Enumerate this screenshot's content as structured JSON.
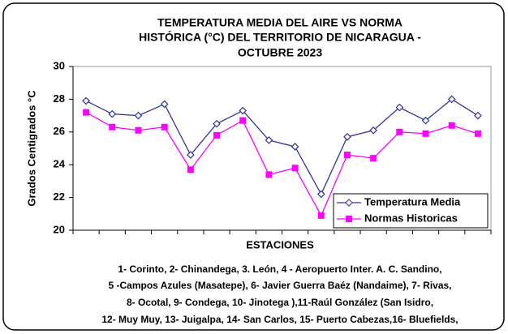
{
  "chart_data": {
    "type": "line",
    "title": [
      "TEMPERATURA  MEDIA DEL AIRE  VS  NORMA",
      "HISTÓRICA  (°C) DEL TERRITORIO DE NICARAGUA   -",
      "OCTUBRE 2023"
    ],
    "y_label": "Grados Centigrados °C",
    "x_label": "ESTACIONES",
    "categories": [
      null,
      null,
      null,
      null,
      null,
      null,
      null,
      null,
      null,
      null,
      null,
      null,
      null,
      null,
      null,
      null
    ],
    "series": [
      {
        "name": "Temperatura Media",
        "color": "#333399",
        "marker": "diamond",
        "values": [
          27.9,
          27.1,
          27.0,
          27.7,
          24.6,
          26.5,
          27.3,
          25.5,
          25.1,
          22.2,
          25.7,
          26.1,
          27.5,
          26.7,
          28.0,
          27.0
        ]
      },
      {
        "name": "Normas Historicas",
        "color": "#ff00ff",
        "marker": "square",
        "values": [
          27.2,
          26.3,
          26.1,
          26.3,
          23.7,
          25.8,
          26.7,
          23.4,
          23.8,
          20.9,
          24.6,
          24.4,
          26.0,
          25.9,
          26.4,
          25.9
        ]
      }
    ],
    "ylim": [
      20,
      30
    ],
    "yticks": [
      20,
      22,
      24,
      26,
      28,
      30
    ],
    "grid": false,
    "legend": "lower right",
    "notes": [
      "1- Corinto,  2- Chinandega,  3. León,  4 - Aeropuerto Inter. A. C. Sandino,",
      "5 -Campos Azules (Masatepe), 6- Javier Guerra Baéz (Nandaime), 7- Rivas,",
      "8- Ocotal, 9- Condega,  10- Jinotega ),11-Raúl González (San Isidro,",
      "12- Muy Muy, 13- Juigalpa,  14- San Carlos,  15- Puerto Cabezas,16- Bluefields,"
    ]
  }
}
